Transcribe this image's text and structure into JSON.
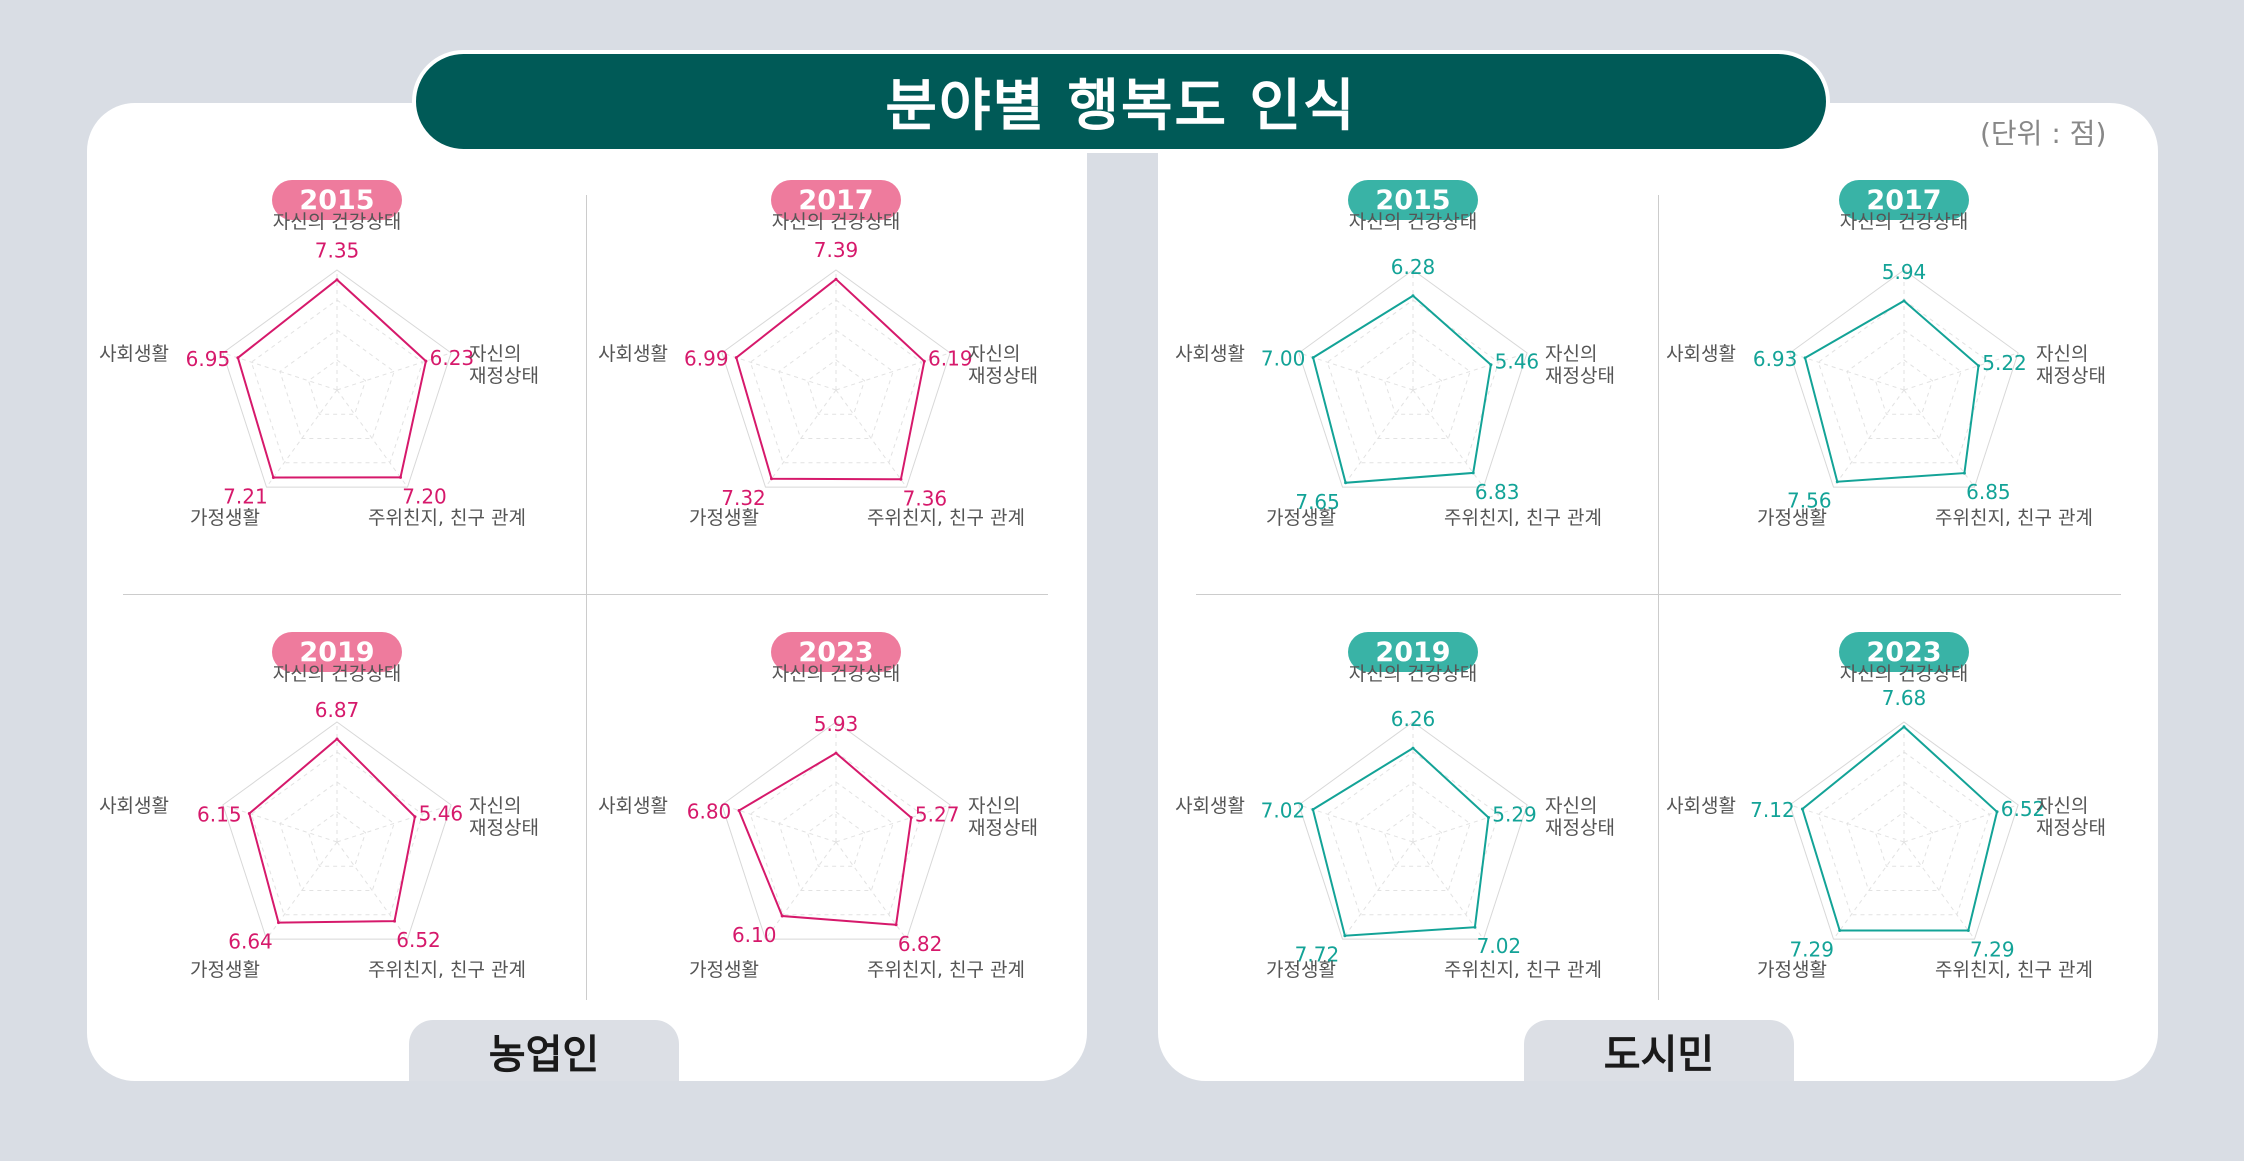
{
  "title": "분야별 행복도 인식",
  "unit": "(단위 : 점)",
  "groups": [
    {
      "name": "농업인",
      "color": "#d6196b",
      "badge_color": "#ee7b9d"
    },
    {
      "name": "도시민",
      "color": "#13a397",
      "badge_color": "#39b3a6"
    }
  ],
  "axes": [
    "자신의 건강상태",
    "자신의\n재정상태",
    "주위친지, 친구 관계",
    "가정생활",
    "사회생활"
  ],
  "chart_data": [
    {
      "type": "radar",
      "group": "농업인",
      "year": "2015",
      "values": [
        7.35,
        6.23,
        7.2,
        7.21,
        6.95
      ],
      "labels": [
        "7.35",
        "6.23",
        "7.20",
        "7.21",
        "6.95"
      ],
      "rmax": 8
    },
    {
      "type": "radar",
      "group": "농업인",
      "year": "2017",
      "values": [
        7.39,
        6.19,
        7.36,
        7.32,
        6.99
      ],
      "labels": [
        "7.39",
        "6.19",
        "7.36",
        "7.32",
        "6.99"
      ],
      "rmax": 8
    },
    {
      "type": "radar",
      "group": "농업인",
      "year": "2019",
      "values": [
        6.87,
        5.46,
        6.52,
        6.64,
        6.15
      ],
      "labels": [
        "6.87",
        "5.46",
        "6.52",
        "6.64",
        "6.15"
      ],
      "rmax": 8
    },
    {
      "type": "radar",
      "group": "농업인",
      "year": "2023",
      "values": [
        5.93,
        5.27,
        6.82,
        6.1,
        6.8
      ],
      "labels": [
        "5.93",
        "5.27",
        "6.82",
        "6.10",
        "6.80"
      ],
      "rmax": 8
    },
    {
      "type": "radar",
      "group": "도시민",
      "year": "2015",
      "values": [
        6.28,
        5.46,
        6.83,
        7.65,
        7.0
      ],
      "labels": [
        "6.28",
        "5.46",
        "6.83",
        "7.65",
        "7.00"
      ],
      "rmax": 8
    },
    {
      "type": "radar",
      "group": "도시민",
      "year": "2017",
      "values": [
        5.94,
        5.22,
        6.85,
        7.56,
        6.93
      ],
      "labels": [
        "5.94",
        "5.22",
        "6.85",
        "7.56",
        "6.93"
      ],
      "rmax": 8
    },
    {
      "type": "radar",
      "group": "도시민",
      "year": "2019",
      "values": [
        6.26,
        5.29,
        7.02,
        7.72,
        7.02
      ],
      "labels": [
        "6.26",
        "5.29",
        "7.02",
        "7.72",
        "7.02"
      ],
      "rmax": 8
    },
    {
      "type": "radar",
      "group": "도시민",
      "year": "2023",
      "values": [
        7.68,
        6.52,
        7.29,
        7.29,
        7.12
      ],
      "labels": [
        "7.68",
        "6.52",
        "7.29",
        "7.29",
        "7.12"
      ],
      "rmax": 8
    }
  ]
}
